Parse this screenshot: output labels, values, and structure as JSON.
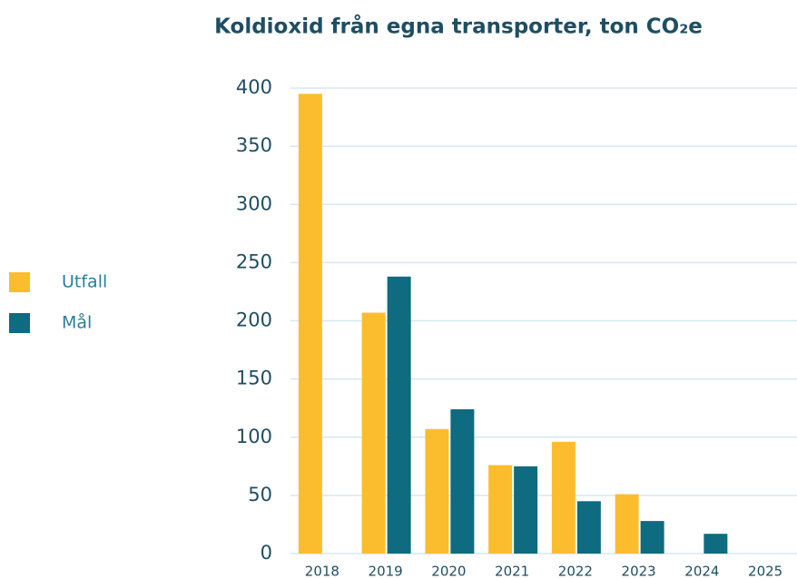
{
  "chart_data": {
    "type": "bar",
    "title": "Koldioxid från egna transporter, ton CO₂e",
    "categories": [
      "2018",
      "2019",
      "2020",
      "2021",
      "2022",
      "2023",
      "2024",
      "2025"
    ],
    "series": [
      {
        "name": "Utfall",
        "color": "#fbbd2e",
        "values": [
          395,
          207,
          107,
          76,
          96,
          51,
          null,
          null
        ]
      },
      {
        "name": "Mål",
        "color": "#0e6b80",
        "values": [
          null,
          238,
          124,
          75,
          45,
          28,
          17,
          null
        ]
      }
    ],
    "ylim": [
      0,
      400
    ],
    "yticks": [
      0,
      50,
      100,
      150,
      200,
      250,
      300,
      350,
      400
    ],
    "grid": true,
    "legend": "left"
  }
}
